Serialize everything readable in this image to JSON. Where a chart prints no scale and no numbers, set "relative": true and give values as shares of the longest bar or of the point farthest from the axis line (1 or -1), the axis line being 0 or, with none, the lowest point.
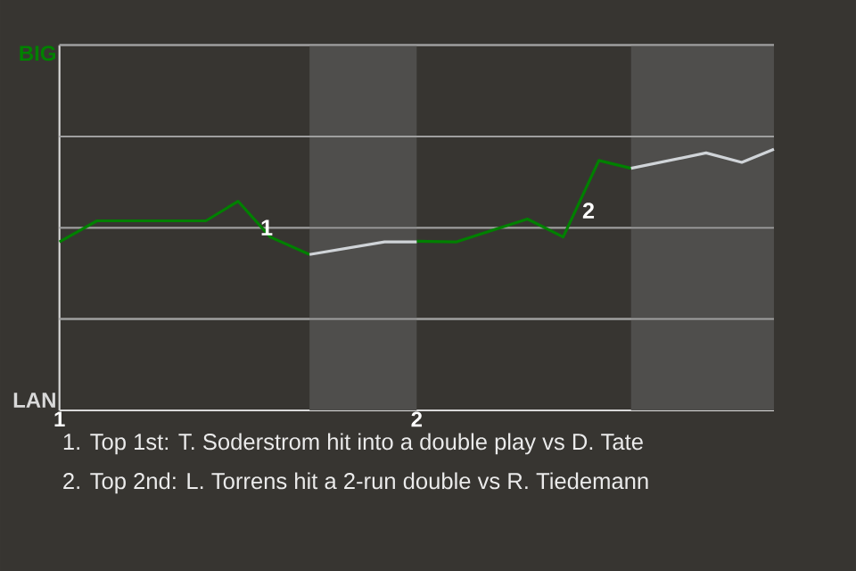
{
  "chart_data": {
    "type": "line",
    "relative": true,
    "xlim": [
      1,
      3
    ],
    "xticks": [
      1,
      2
    ],
    "marker": "none",
    "line_style": "solid",
    "ref_lines": [
      {
        "axis": "y",
        "value": 0.35,
        "color": "#9f9f9f"
      },
      {
        "axis": "y",
        "value": 0.699,
        "color": "#9f9f9f"
      },
      {
        "axis": "y",
        "value": 1.049,
        "color": "#9f9f9f"
      },
      {
        "axis": "y",
        "value": 1.399,
        "color": "#9f9f9f"
      }
    ],
    "series": [
      {
        "color": "#008000",
        "x": [
          1,
          1.105,
          1.41,
          1.5,
          1.59,
          1.7,
          1.85,
          2.0,
          2.11,
          2.31,
          2.41,
          2.51,
          2.6
        ],
        "values": [
          0.645,
          0.726,
          0.726,
          0.801,
          0.664,
          0.597,
          null,
          0.648,
          0.645,
          0.733,
          0.664,
          0.957,
          0.927
        ]
      },
      {
        "color": "#d0d4d8",
        "x": [
          1.7,
          1.91,
          2.0,
          2.3,
          2.6,
          2.81,
          2.91,
          3.0
        ],
        "values": [
          0.597,
          0.645,
          0.645,
          null,
          0.927,
          0.986,
          0.95,
          1
        ]
      }
    ],
    "bands": [
      {
        "axis": "x",
        "from": 1.7,
        "to": 2.0,
        "color": "#4f4e4c"
      },
      {
        "axis": "x",
        "from": 2.6,
        "to": 3.0,
        "color": "#4f4e4c"
      }
    ],
    "annotations": [
      "BIG",
      "LAN",
      {
        "text": "1",
        "x": 1.58,
        "y": 0.7
      },
      "2",
      "1. Top 1st: T. Soderstrom hit into a double play vs D. Tate",
      "2. Top 2nd: L. Torrens hit a 2-run double vs R. Tiedemann"
    ]
  }
}
